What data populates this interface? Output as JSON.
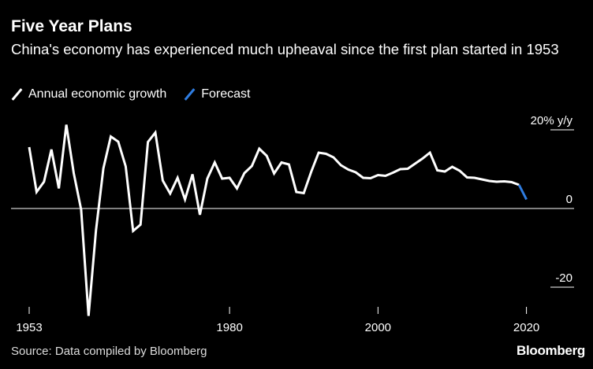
{
  "title": "Five Year Plans",
  "subtitle": "China's economy has experienced much upheaval since the first plan started in 1953",
  "legend": {
    "actual": "Annual economic growth",
    "forecast": "Forecast"
  },
  "source": "Source: Data compiled by Bloomberg",
  "logo": "Bloomberg",
  "colors": {
    "background": "#000000",
    "actual": "#ffffff",
    "forecast": "#2f7de1"
  },
  "chart_data": {
    "type": "line",
    "title": "Five Year Plans",
    "subtitle": "China's economy has experienced much upheaval since the first plan started in 1953",
    "unit": "y/y",
    "ylim": [
      -28,
      25
    ],
    "xlim": [
      1953,
      2021
    ],
    "x_ticks": [
      {
        "value": 1953,
        "label": "1953"
      },
      {
        "value": 1980,
        "label": "1980"
      },
      {
        "value": 2000,
        "label": "2000"
      },
      {
        "value": 2020,
        "label": "2020"
      }
    ],
    "y_ticks": [
      {
        "value": 20,
        "label": "20% y/y"
      },
      {
        "value": 0,
        "label": "0"
      },
      {
        "value": -20,
        "label": "-20"
      }
    ],
    "series": [
      {
        "name": "Annual economic growth",
        "color": "#ffffff",
        "points": [
          [
            1953,
            15.6
          ],
          [
            1954,
            4.2
          ],
          [
            1955,
            6.8
          ],
          [
            1956,
            15.0
          ],
          [
            1957,
            5.1
          ],
          [
            1958,
            21.3
          ],
          [
            1959,
            9.0
          ],
          [
            1960,
            -0.3
          ],
          [
            1961,
            -27.3
          ],
          [
            1962,
            -5.6
          ],
          [
            1963,
            10.2
          ],
          [
            1964,
            18.3
          ],
          [
            1965,
            17.0
          ],
          [
            1966,
            10.7
          ],
          [
            1967,
            -5.7
          ],
          [
            1968,
            -4.1
          ],
          [
            1969,
            16.9
          ],
          [
            1970,
            19.3
          ],
          [
            1971,
            7.1
          ],
          [
            1972,
            3.8
          ],
          [
            1973,
            7.8
          ],
          [
            1974,
            2.3
          ],
          [
            1975,
            8.7
          ],
          [
            1976,
            -1.6
          ],
          [
            1977,
            7.6
          ],
          [
            1978,
            11.7
          ],
          [
            1979,
            7.6
          ],
          [
            1980,
            7.8
          ],
          [
            1981,
            5.1
          ],
          [
            1982,
            9.0
          ],
          [
            1983,
            10.8
          ],
          [
            1984,
            15.2
          ],
          [
            1985,
            13.4
          ],
          [
            1986,
            8.9
          ],
          [
            1987,
            11.7
          ],
          [
            1988,
            11.2
          ],
          [
            1989,
            4.2
          ],
          [
            1990,
            3.9
          ],
          [
            1991,
            9.3
          ],
          [
            1992,
            14.2
          ],
          [
            1993,
            13.9
          ],
          [
            1994,
            13.0
          ],
          [
            1995,
            11.0
          ],
          [
            1996,
            9.9
          ],
          [
            1997,
            9.2
          ],
          [
            1998,
            7.8
          ],
          [
            1999,
            7.7
          ],
          [
            2000,
            8.5
          ],
          [
            2001,
            8.3
          ],
          [
            2002,
            9.1
          ],
          [
            2003,
            10.0
          ],
          [
            2004,
            10.1
          ],
          [
            2005,
            11.4
          ],
          [
            2006,
            12.7
          ],
          [
            2007,
            14.2
          ],
          [
            2008,
            9.7
          ],
          [
            2009,
            9.4
          ],
          [
            2010,
            10.6
          ],
          [
            2011,
            9.6
          ],
          [
            2012,
            7.9
          ],
          [
            2013,
            7.8
          ],
          [
            2014,
            7.4
          ],
          [
            2015,
            7.0
          ],
          [
            2016,
            6.8
          ],
          [
            2017,
            6.9
          ],
          [
            2018,
            6.7
          ],
          [
            2019,
            6.0
          ]
        ]
      },
      {
        "name": "Forecast",
        "color": "#2f7de1",
        "points": [
          [
            2019,
            6.0
          ],
          [
            2020,
            2.3
          ]
        ]
      }
    ]
  }
}
